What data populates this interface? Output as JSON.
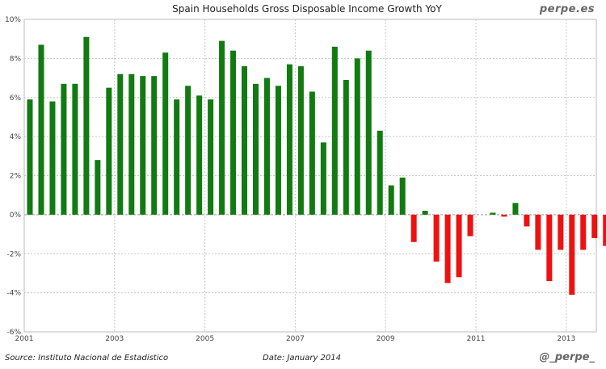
{
  "chart_data": {
    "type": "bar",
    "title": "Spain Households Gross Disposable Income Growth YoY",
    "xlabel": "",
    "ylabel": "",
    "ylim": [
      -6,
      10
    ],
    "yticks": [
      -6,
      -4,
      -2,
      0,
      2,
      4,
      6,
      8,
      10
    ],
    "ytick_suffix": "%",
    "xticks": [
      "2001",
      "2003",
      "2005",
      "2007",
      "2009",
      "2011",
      "2013"
    ],
    "grid": true,
    "frequency": "quarterly",
    "start": "2001 Q1",
    "positive_color": "#117a11",
    "negative_color": "#ee1111",
    "values": [
      5.9,
      8.7,
      5.8,
      6.7,
      6.7,
      9.1,
      2.8,
      6.5,
      7.2,
      7.2,
      7.1,
      7.1,
      8.3,
      5.9,
      6.6,
      6.1,
      5.9,
      8.9,
      8.4,
      7.6,
      6.7,
      7.0,
      6.6,
      7.7,
      7.6,
      6.3,
      3.7,
      8.6,
      6.9,
      8.0,
      8.4,
      4.3,
      1.5,
      1.9,
      -1.4,
      0.2,
      -2.4,
      -3.5,
      -3.2,
      -1.1,
      0.0,
      0.1,
      -0.1,
      0.6,
      -0.6,
      -1.8,
      -3.4,
      -1.8,
      -4.1,
      -1.8,
      -1.2,
      -1.6
    ]
  },
  "brand": "perpe.es",
  "footer": {
    "source": "Source: Instituto Nacional de Estadistico",
    "date": "Date: January 2014",
    "handle": "@_perpe_"
  }
}
